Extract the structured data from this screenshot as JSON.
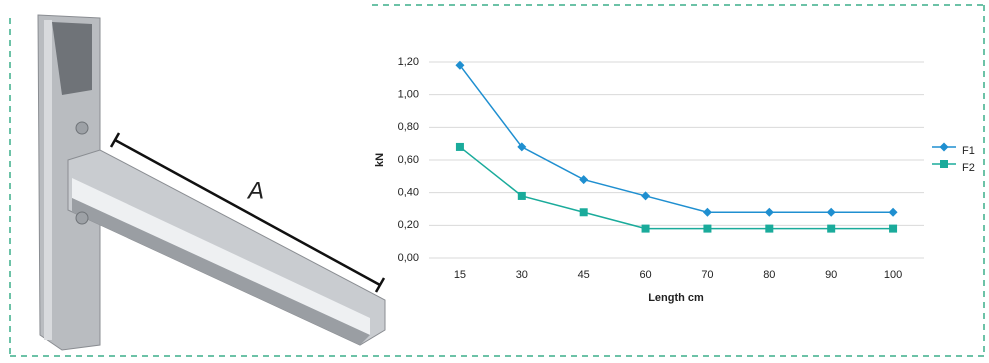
{
  "chart_data": {
    "type": "line",
    "image_label": "A",
    "xlabel": "Length cm",
    "ylabel": "kN",
    "categories": [
      "15",
      "30",
      "45",
      "60",
      "70",
      "80",
      "90",
      "100"
    ],
    "series": [
      {
        "name": "F1",
        "color": "#1f8fd0",
        "marker": "diamond",
        "values": [
          1.18,
          0.68,
          0.48,
          0.38,
          0.28,
          0.28,
          0.28,
          0.28
        ]
      },
      {
        "name": "F2",
        "color": "#1aab9b",
        "marker": "square",
        "values": [
          0.68,
          0.38,
          0.28,
          0.18,
          0.18,
          0.18,
          0.18,
          0.18
        ]
      }
    ],
    "ylim": [
      0,
      1.2
    ],
    "yticks": [
      {
        "value": 0,
        "label": "0,00"
      },
      {
        "value": 0.2,
        "label": "0,20"
      },
      {
        "value": 0.4,
        "label": "0,40"
      },
      {
        "value": 0.6,
        "label": "0,60"
      },
      {
        "value": 0.8,
        "label": "0,80"
      },
      {
        "value": 1,
        "label": "1,00"
      },
      {
        "value": 1.2,
        "label": "1,20"
      }
    ],
    "grid": true,
    "legend": "right"
  }
}
